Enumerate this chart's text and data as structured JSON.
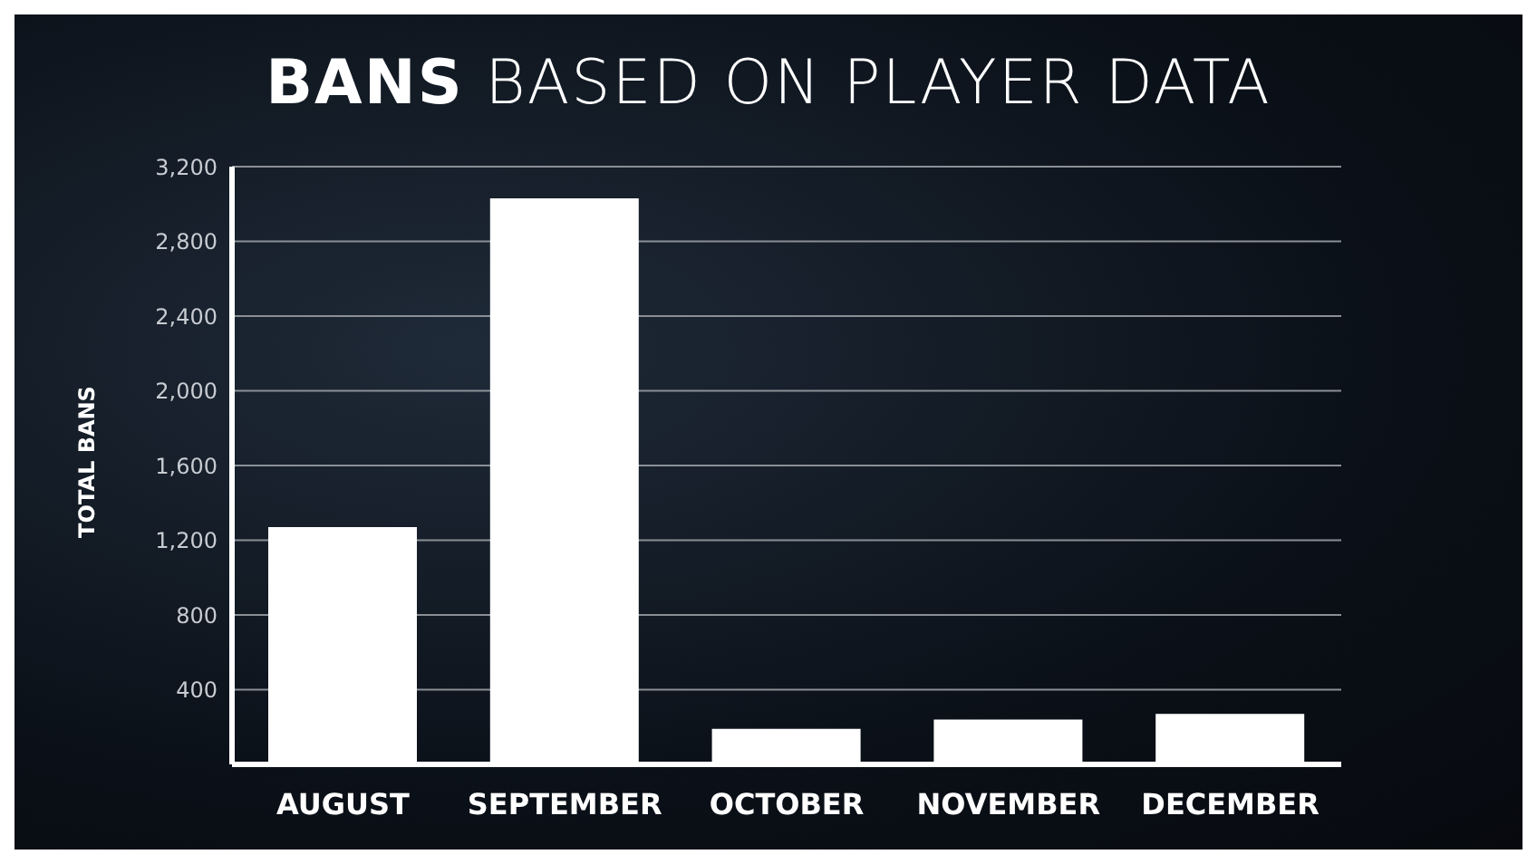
{
  "chart_data": {
    "type": "bar",
    "title": "BANS BASED ON PLAYER DATA",
    "ylabel": "TOTAL BANS",
    "categories": [
      "AUGUST",
      "SEPTEMBER",
      "OCTOBER",
      "NOVEMBER",
      "DECEMBER"
    ],
    "values": [
      1270,
      3030,
      190,
      240,
      270
    ],
    "color": "#ffffff",
    "ylim": [
      0,
      3200
    ],
    "yticks": [
      400,
      800,
      {
        "value": 1200,
        "label": "1,200"
      },
      {
        "value": 1600,
        "label": "1,600"
      },
      {
        "value": 2000,
        "label": "2,000"
      },
      {
        "value": 2400,
        "label": "2,400"
      },
      {
        "value": 2800,
        "label": "2,800"
      },
      {
        "value": 3200,
        "label": "3,200"
      }
    ],
    "grid": "y"
  }
}
